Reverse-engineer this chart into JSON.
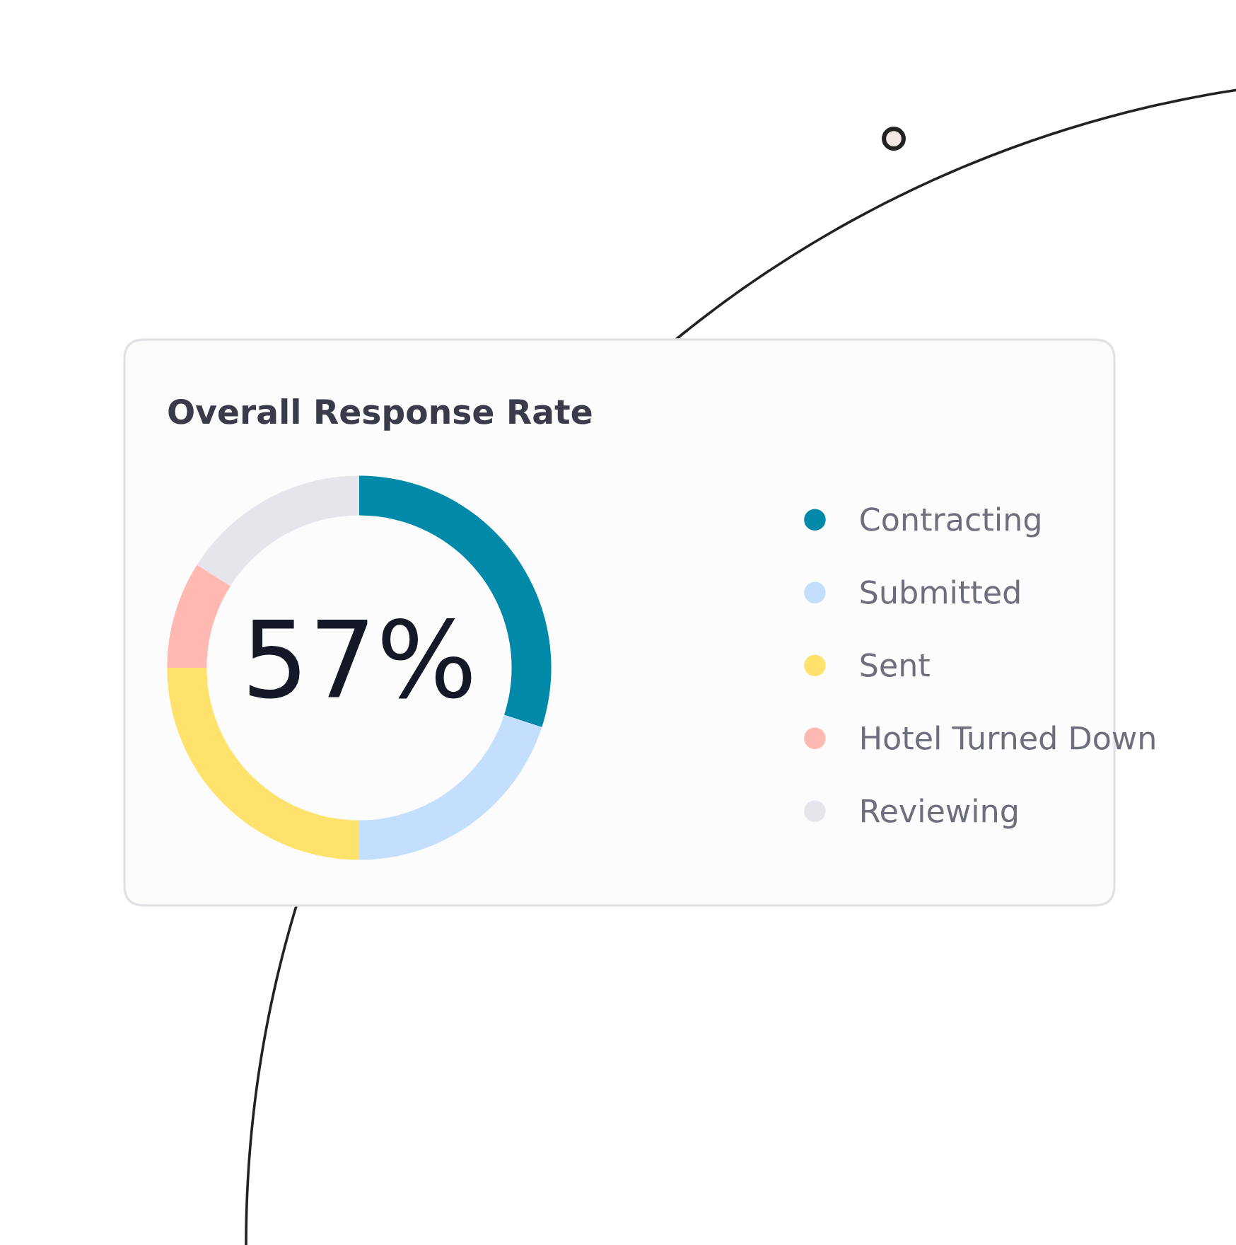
{
  "chart_data": {
    "type": "donut",
    "title": "Overall Response Rate",
    "categories": [
      "Contracting",
      "Submitted",
      "Sent",
      "Hotel Turned Down",
      "Reviewing"
    ],
    "values": [
      30,
      20,
      25,
      9,
      16
    ],
    "colors": [
      "#0089a8",
      "#c4defd",
      "#ffe26c",
      "#ffb9b2",
      "#e6e5eb"
    ],
    "annotations": [
      "57%"
    ],
    "legend": "right"
  }
}
